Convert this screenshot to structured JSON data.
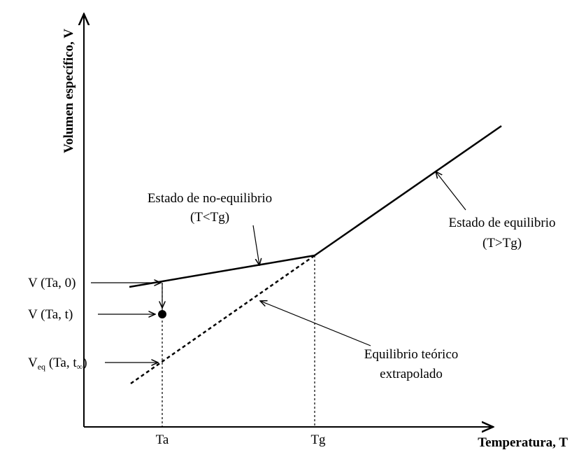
{
  "axes": {
    "y_label": "Volumen específico, V",
    "x_label": "Temperatura, T",
    "x_ticks": [
      "Ta",
      "Tg"
    ]
  },
  "annotations": {
    "no_equilibrium": [
      "Estado de no-equilibrio",
      "(T<Tg)"
    ],
    "equilibrium": [
      "Estado de equilibrio",
      "(T>Tg)"
    ],
    "extrapolated": [
      "Equilibrio teórico",
      "extrapolado"
    ]
  },
  "levels": {
    "v0": "V (Ta, 0)",
    "vt": "V (Ta, t)",
    "veq": {
      "main": "V",
      "sub": "eq",
      "rest": " (Ta, t",
      "sub2": "∞",
      "end": ")"
    }
  }
}
